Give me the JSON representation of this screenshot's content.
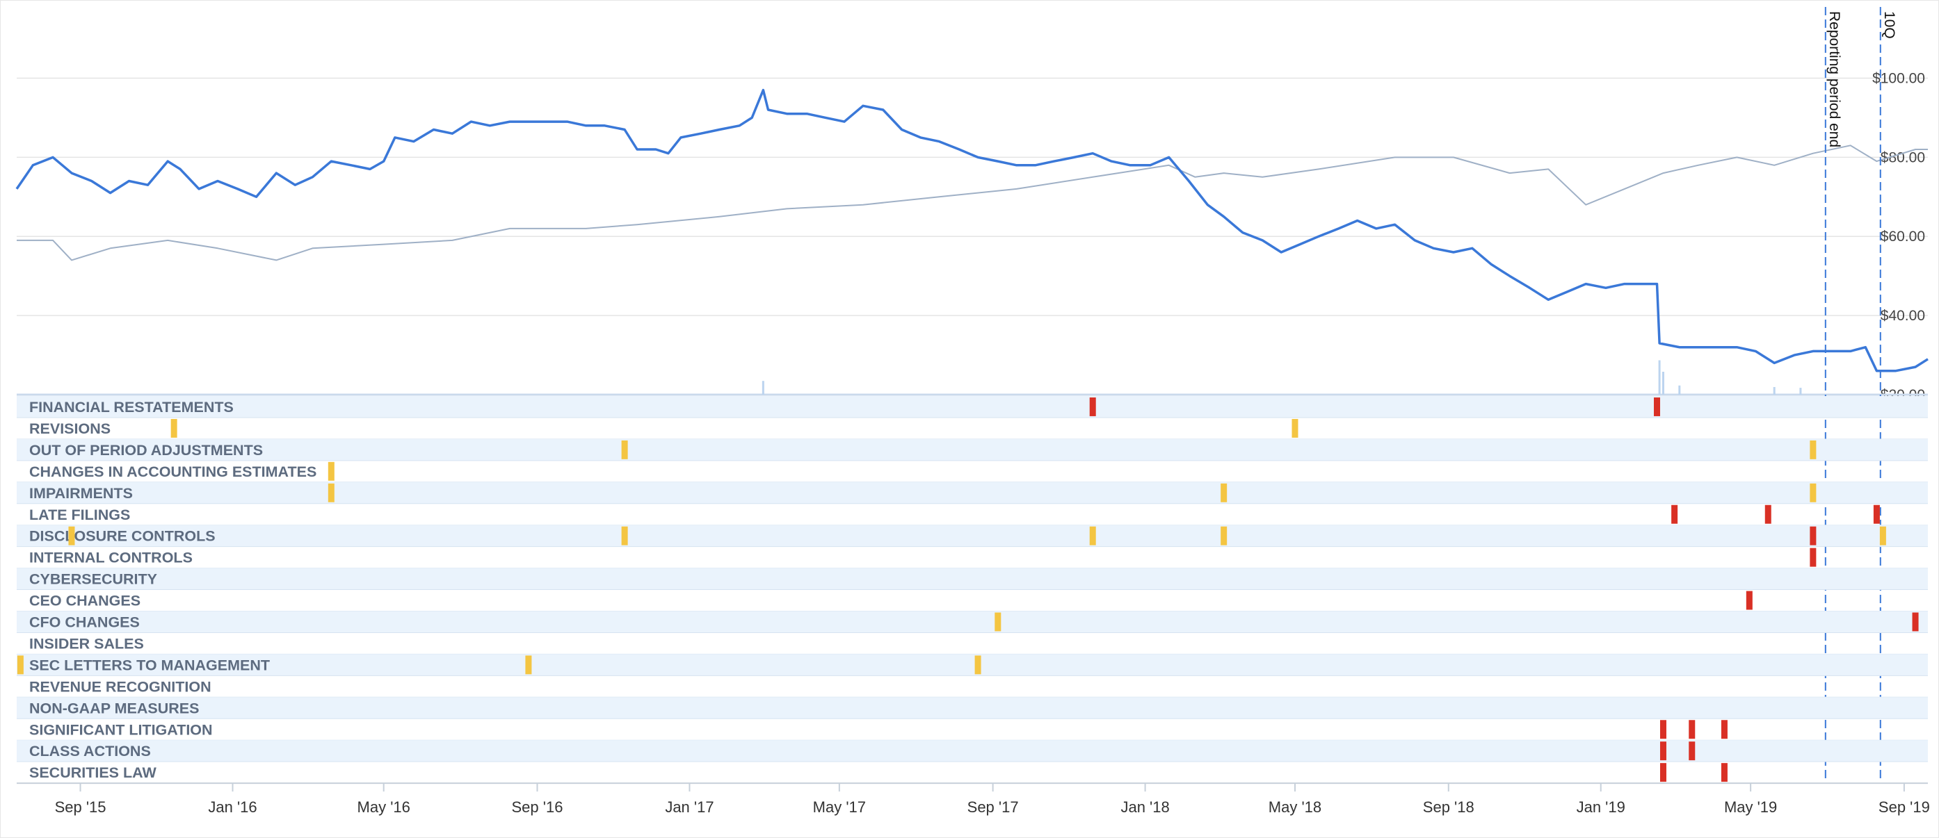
{
  "chart_data": {
    "type": "line",
    "price_axis": {
      "ticks": [
        "$20.00",
        "$40.00",
        "$60.00",
        "$80.00",
        "$100.00"
      ],
      "values": [
        20,
        40,
        60,
        80,
        100
      ],
      "ylim": [
        20,
        118
      ]
    },
    "x_axis": {
      "ticks": [
        "Sep '15",
        "Jan '16",
        "May '16",
        "Sep '16",
        "Jan '17",
        "May '17",
        "Sep '17",
        "Jan '18",
        "May '18",
        "Sep '18",
        "Jan '19",
        "May '19",
        "Sep '19"
      ],
      "tick_dates": [
        "2015-09-01",
        "2016-01-01",
        "2016-05-01",
        "2016-09-01",
        "2017-01-01",
        "2017-05-01",
        "2017-09-01",
        "2018-01-01",
        "2018-05-01",
        "2018-09-01",
        "2019-01-01",
        "2019-05-01",
        "2019-09-01"
      ],
      "xlim": [
        "2015-07-12",
        "2019-09-20"
      ]
    },
    "grid": true,
    "vertical_markers": [
      {
        "label": "Reporting period end",
        "date": "2019-06-30"
      },
      {
        "label": "10Q",
        "date": "2019-08-13"
      }
    ],
    "series": [
      {
        "role": "stock",
        "color": "#3a78d8",
        "points": [
          [
            "2015-07-12",
            72
          ],
          [
            "2015-07-25",
            78
          ],
          [
            "2015-08-10",
            80
          ],
          [
            "2015-08-25",
            76
          ],
          [
            "2015-09-10",
            74
          ],
          [
            "2015-09-25",
            71
          ],
          [
            "2015-10-10",
            74
          ],
          [
            "2015-10-25",
            73
          ],
          [
            "2015-11-10",
            79
          ],
          [
            "2015-11-20",
            77
          ],
          [
            "2015-12-05",
            72
          ],
          [
            "2015-12-20",
            74
          ],
          [
            "2016-01-05",
            72
          ],
          [
            "2016-01-20",
            70
          ],
          [
            "2016-02-05",
            76
          ],
          [
            "2016-02-20",
            73
          ],
          [
            "2016-03-05",
            75
          ],
          [
            "2016-03-20",
            79
          ],
          [
            "2016-04-05",
            78
          ],
          [
            "2016-04-20",
            77
          ],
          [
            "2016-05-01",
            79
          ],
          [
            "2016-05-10",
            85
          ],
          [
            "2016-05-25",
            84
          ],
          [
            "2016-06-10",
            87
          ],
          [
            "2016-06-25",
            86
          ],
          [
            "2016-07-10",
            89
          ],
          [
            "2016-07-25",
            88
          ],
          [
            "2016-08-10",
            89
          ],
          [
            "2016-08-25",
            89
          ],
          [
            "2016-09-10",
            89
          ],
          [
            "2016-09-25",
            89
          ],
          [
            "2016-10-10",
            88
          ],
          [
            "2016-10-25",
            88
          ],
          [
            "2016-11-10",
            87
          ],
          [
            "2016-11-20",
            82
          ],
          [
            "2016-12-05",
            82
          ],
          [
            "2016-12-15",
            81
          ],
          [
            "2016-12-25",
            85
          ],
          [
            "2017-01-10",
            86
          ],
          [
            "2017-01-25",
            87
          ],
          [
            "2017-02-10",
            88
          ],
          [
            "2017-02-20",
            90
          ],
          [
            "2017-03-01",
            97
          ],
          [
            "2017-03-05",
            92
          ],
          [
            "2017-03-20",
            91
          ],
          [
            "2017-04-05",
            91
          ],
          [
            "2017-04-20",
            90
          ],
          [
            "2017-05-05",
            89
          ],
          [
            "2017-05-20",
            93
          ],
          [
            "2017-06-05",
            92
          ],
          [
            "2017-06-20",
            87
          ],
          [
            "2017-07-05",
            85
          ],
          [
            "2017-07-20",
            84
          ],
          [
            "2017-08-05",
            82
          ],
          [
            "2017-08-20",
            80
          ],
          [
            "2017-09-05",
            79
          ],
          [
            "2017-09-20",
            78
          ],
          [
            "2017-10-05",
            78
          ],
          [
            "2017-10-20",
            79
          ],
          [
            "2017-11-05",
            80
          ],
          [
            "2017-11-20",
            81
          ],
          [
            "2017-12-05",
            79
          ],
          [
            "2017-12-20",
            78
          ],
          [
            "2018-01-05",
            78
          ],
          [
            "2018-01-20",
            80
          ],
          [
            "2018-02-05",
            74
          ],
          [
            "2018-02-20",
            68
          ],
          [
            "2018-03-05",
            65
          ],
          [
            "2018-03-20",
            61
          ],
          [
            "2018-04-05",
            59
          ],
          [
            "2018-04-20",
            56
          ],
          [
            "2018-05-05",
            58
          ],
          [
            "2018-05-20",
            60
          ],
          [
            "2018-06-05",
            62
          ],
          [
            "2018-06-20",
            64
          ],
          [
            "2018-07-05",
            62
          ],
          [
            "2018-07-20",
            63
          ],
          [
            "2018-08-05",
            59
          ],
          [
            "2018-08-20",
            57
          ],
          [
            "2018-09-05",
            56
          ],
          [
            "2018-09-20",
            57
          ],
          [
            "2018-10-05",
            53
          ],
          [
            "2018-10-20",
            50
          ],
          [
            "2018-11-05",
            47
          ],
          [
            "2018-11-20",
            44
          ],
          [
            "2018-12-05",
            46
          ],
          [
            "2018-12-20",
            48
          ],
          [
            "2019-01-05",
            47
          ],
          [
            "2019-01-20",
            48
          ],
          [
            "2019-02-05",
            48
          ],
          [
            "2019-02-15",
            48
          ],
          [
            "2019-02-17",
            33
          ],
          [
            "2019-03-05",
            32
          ],
          [
            "2019-03-20",
            32
          ],
          [
            "2019-04-05",
            32
          ],
          [
            "2019-04-20",
            32
          ],
          [
            "2019-05-05",
            31
          ],
          [
            "2019-05-20",
            28
          ],
          [
            "2019-06-05",
            30
          ],
          [
            "2019-06-20",
            31
          ],
          [
            "2019-07-05",
            31
          ],
          [
            "2019-07-20",
            31
          ],
          [
            "2019-08-01",
            32
          ],
          [
            "2019-08-10",
            26
          ],
          [
            "2019-08-25",
            26
          ],
          [
            "2019-09-10",
            27
          ],
          [
            "2019-09-20",
            29
          ]
        ]
      },
      {
        "role": "benchmark",
        "color": "#9fb0c6",
        "points": [
          [
            "2015-07-12",
            59
          ],
          [
            "2015-08-10",
            59
          ],
          [
            "2015-08-25",
            54
          ],
          [
            "2015-09-25",
            57
          ],
          [
            "2015-11-10",
            59
          ],
          [
            "2015-12-20",
            57
          ],
          [
            "2016-02-05",
            54
          ],
          [
            "2016-03-05",
            57
          ],
          [
            "2016-05-01",
            58
          ],
          [
            "2016-06-25",
            59
          ],
          [
            "2016-08-10",
            62
          ],
          [
            "2016-10-10",
            62
          ],
          [
            "2016-11-20",
            63
          ],
          [
            "2017-01-25",
            65
          ],
          [
            "2017-03-20",
            67
          ],
          [
            "2017-05-20",
            68
          ],
          [
            "2017-07-20",
            70
          ],
          [
            "2017-09-20",
            72
          ],
          [
            "2017-11-20",
            75
          ],
          [
            "2018-01-20",
            78
          ],
          [
            "2018-02-10",
            75
          ],
          [
            "2018-03-05",
            76
          ],
          [
            "2018-04-05",
            75
          ],
          [
            "2018-05-20",
            77
          ],
          [
            "2018-07-20",
            80
          ],
          [
            "2018-09-05",
            80
          ],
          [
            "2018-10-20",
            76
          ],
          [
            "2018-11-20",
            77
          ],
          [
            "2018-12-20",
            68
          ],
          [
            "2019-01-20",
            72
          ],
          [
            "2019-02-20",
            76
          ],
          [
            "2019-03-20",
            78
          ],
          [
            "2019-04-20",
            80
          ],
          [
            "2019-05-20",
            78
          ],
          [
            "2019-06-20",
            81
          ],
          [
            "2019-07-20",
            83
          ],
          [
            "2019-08-10",
            79
          ],
          [
            "2019-09-10",
            82
          ],
          [
            "2019-09-20",
            82
          ]
        ]
      }
    ],
    "volume": {
      "color": "#bcd4ef",
      "spikes": [
        [
          "2017-03-01",
          18
        ],
        [
          "2019-02-17",
          45
        ],
        [
          "2019-02-20",
          30
        ],
        [
          "2019-03-05",
          12
        ],
        [
          "2019-05-20",
          10
        ],
        [
          "2019-06-10",
          9
        ]
      ]
    },
    "event_rows": [
      {
        "label": "FINANCIAL RESTATEMENTS",
        "events": [
          {
            "date": "2017-11-20",
            "severity": "red"
          },
          {
            "date": "2019-02-15",
            "severity": "red"
          }
        ]
      },
      {
        "label": "REVISIONS",
        "events": [
          {
            "date": "2015-11-15",
            "severity": "yellow"
          },
          {
            "date": "2018-05-01",
            "severity": "yellow"
          }
        ]
      },
      {
        "label": "OUT OF PERIOD ADJUSTMENTS",
        "events": [
          {
            "date": "2016-11-10",
            "severity": "yellow"
          },
          {
            "date": "2019-06-20",
            "severity": "yellow"
          }
        ]
      },
      {
        "label": "CHANGES IN ACCOUNTING ESTIMATES",
        "events": [
          {
            "date": "2016-03-20",
            "severity": "yellow"
          }
        ]
      },
      {
        "label": "IMPAIRMENTS",
        "events": [
          {
            "date": "2016-03-20",
            "severity": "yellow"
          },
          {
            "date": "2018-03-05",
            "severity": "yellow"
          },
          {
            "date": "2019-06-20",
            "severity": "yellow"
          }
        ]
      },
      {
        "label": "LATE FILINGS",
        "events": [
          {
            "date": "2019-03-01",
            "severity": "red"
          },
          {
            "date": "2019-05-15",
            "severity": "red"
          },
          {
            "date": "2019-08-10",
            "severity": "red"
          }
        ]
      },
      {
        "label": "DISCLOSURE CONTROLS",
        "events": [
          {
            "date": "2015-08-25",
            "severity": "yellow"
          },
          {
            "date": "2016-11-10",
            "severity": "yellow"
          },
          {
            "date": "2017-11-20",
            "severity": "yellow"
          },
          {
            "date": "2018-03-05",
            "severity": "yellow"
          },
          {
            "date": "2019-06-20",
            "severity": "red"
          },
          {
            "date": "2019-08-15",
            "severity": "yellow"
          }
        ]
      },
      {
        "label": "INTERNAL CONTROLS",
        "events": [
          {
            "date": "2019-06-20",
            "severity": "red"
          }
        ]
      },
      {
        "label": "CYBERSECURITY",
        "events": []
      },
      {
        "label": "CEO CHANGES",
        "events": [
          {
            "date": "2019-04-30",
            "severity": "red"
          }
        ]
      },
      {
        "label": "CFO CHANGES",
        "events": [
          {
            "date": "2017-09-05",
            "severity": "yellow"
          },
          {
            "date": "2019-09-10",
            "severity": "red"
          }
        ]
      },
      {
        "label": "INSIDER SALES",
        "events": []
      },
      {
        "label": "SEC LETTERS TO MANAGEMENT",
        "events": [
          {
            "date": "2015-07-15",
            "severity": "yellow"
          },
          {
            "date": "2016-08-25",
            "severity": "yellow"
          },
          {
            "date": "2017-08-20",
            "severity": "yellow"
          }
        ]
      },
      {
        "label": "REVENUE RECOGNITION",
        "events": []
      },
      {
        "label": "NON-GAAP MEASURES",
        "events": []
      },
      {
        "label": "SIGNIFICANT LITIGATION",
        "events": [
          {
            "date": "2019-02-20",
            "severity": "red"
          },
          {
            "date": "2019-03-15",
            "severity": "red"
          },
          {
            "date": "2019-04-10",
            "severity": "red"
          }
        ]
      },
      {
        "label": "CLASS ACTIONS",
        "events": [
          {
            "date": "2019-02-20",
            "severity": "red"
          },
          {
            "date": "2019-03-15",
            "severity": "red"
          }
        ]
      },
      {
        "label": "SECURITIES LAW",
        "events": [
          {
            "date": "2019-02-20",
            "severity": "red"
          },
          {
            "date": "2019-04-10",
            "severity": "red"
          }
        ]
      }
    ],
    "colors": {
      "red": "#d93025",
      "yellow": "#f4c542",
      "row_band": "#eaf3fc",
      "grid": "#e4e4e4"
    }
  }
}
